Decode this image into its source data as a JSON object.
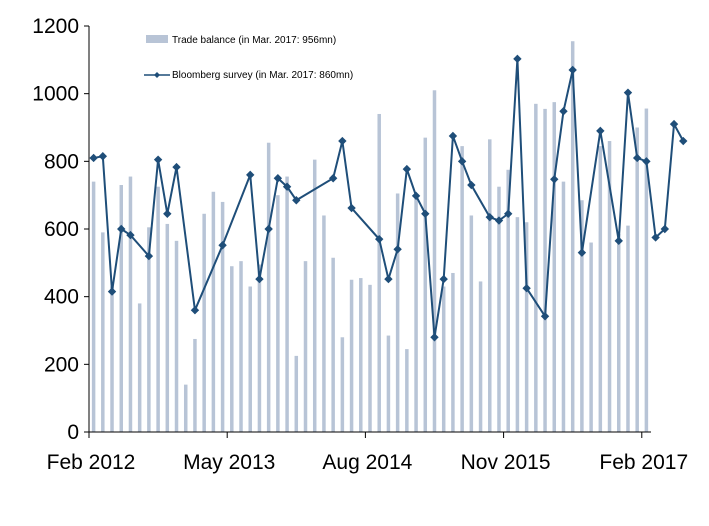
{
  "chart_data": {
    "type": "bar",
    "title": "",
    "xlabel": "",
    "ylabel": "",
    "ylim": [
      0,
      1200
    ],
    "yticks": [
      0,
      200,
      400,
      600,
      800,
      1000,
      1200
    ],
    "xtick_labels": [
      "Feb 2012",
      "May 2013",
      "Aug 2014",
      "Nov 2015",
      "Feb 2017"
    ],
    "x_start": "Feb 2012",
    "x_end": "Mar 2017",
    "grid": false,
    "legend_position": "top-left",
    "colors": {
      "bar": "#b8c4d6",
      "line": "#1f4e79",
      "axis": "#000000"
    },
    "series": [
      {
        "name": "Trade balance (in Mar. 2017: 956mn)",
        "type": "bar",
        "values": [
          740,
          590,
          430,
          730,
          755,
          380,
          605,
          725,
          615,
          565,
          140,
          275,
          645,
          710,
          680,
          490,
          505,
          430,
          495,
          855,
          700,
          755,
          225,
          505,
          805,
          640,
          515,
          280,
          450,
          455,
          435,
          940,
          285,
          705,
          245,
          700,
          870,
          1010,
          430,
          470,
          845,
          640,
          445,
          865,
          725,
          775,
          635,
          620,
          970,
          955,
          975,
          740,
          1155,
          685,
          560,
          845,
          860,
          585,
          610,
          900,
          956
        ]
      },
      {
        "name": "Bloomberg survey (in Mar. 2017: 860mn)",
        "type": "line",
        "points": [
          [
            0,
            810
          ],
          [
            1,
            815
          ],
          [
            2,
            415
          ],
          [
            3,
            600
          ],
          [
            4,
            582
          ],
          [
            6,
            520
          ],
          [
            7,
            805
          ],
          [
            8,
            645
          ],
          [
            9,
            783
          ],
          [
            11,
            360
          ],
          [
            14,
            552
          ],
          [
            17,
            760
          ],
          [
            18,
            452
          ],
          [
            19,
            600
          ],
          [
            20,
            750
          ],
          [
            21,
            725
          ],
          [
            22,
            685
          ],
          [
            26,
            750
          ],
          [
            27,
            860
          ],
          [
            28,
            662
          ],
          [
            31,
            570
          ],
          [
            32,
            452
          ],
          [
            33,
            540
          ],
          [
            34,
            777
          ],
          [
            35,
            698
          ],
          [
            36,
            645
          ],
          [
            37,
            280
          ],
          [
            38,
            452
          ],
          [
            39,
            875
          ],
          [
            40,
            800
          ],
          [
            41,
            730
          ],
          [
            43,
            635
          ],
          [
            44,
            625
          ],
          [
            45,
            645
          ],
          [
            46,
            1103
          ],
          [
            47,
            425
          ],
          [
            49,
            342
          ],
          [
            50,
            747
          ],
          [
            51,
            948
          ],
          [
            52,
            1070
          ],
          [
            53,
            530
          ],
          [
            55,
            890
          ],
          [
            57,
            565
          ],
          [
            58,
            1003
          ],
          [
            59,
            810
          ],
          [
            60,
            800
          ],
          [
            61,
            575
          ],
          [
            62,
            600
          ],
          [
            63,
            910
          ],
          [
            64,
            860
          ]
        ]
      }
    ]
  }
}
